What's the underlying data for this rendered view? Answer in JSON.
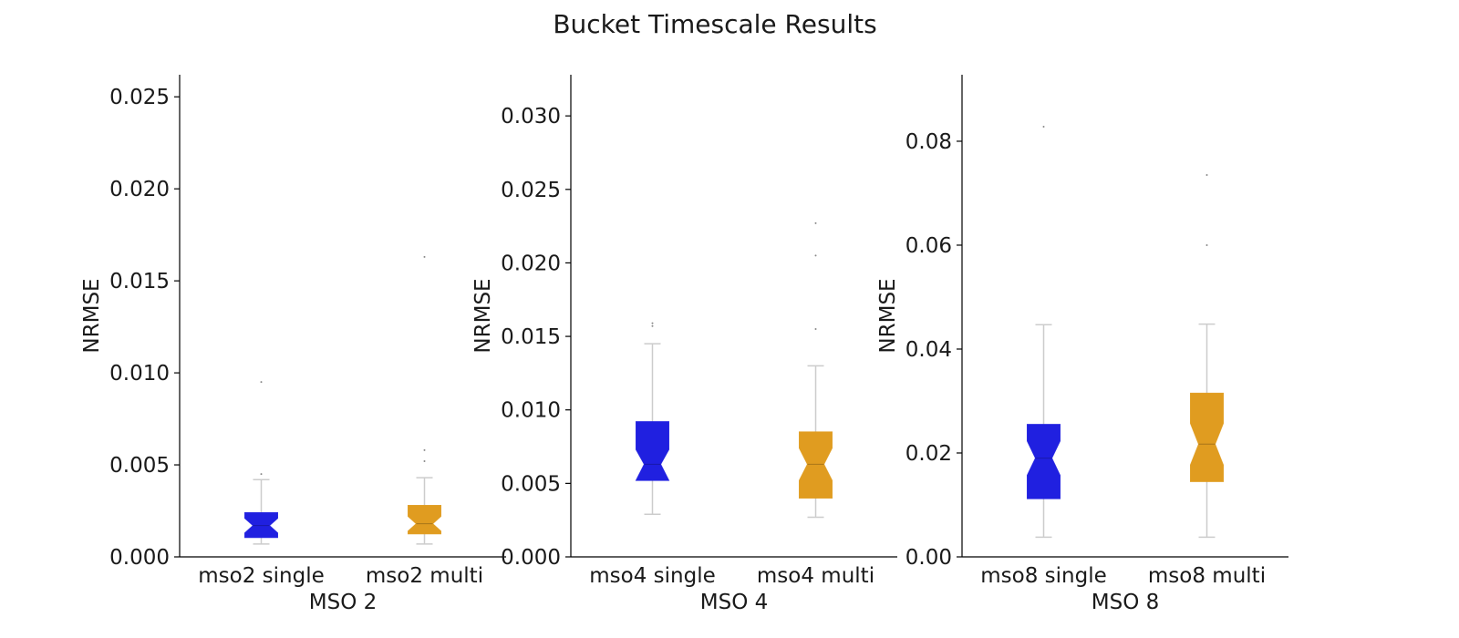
{
  "title": "Bucket Timescale Results",
  "colors": {
    "single": "#2020e0",
    "multi": "#e09c20",
    "axis": "#000000",
    "whisker": "#cccccc"
  },
  "chart_data": [
    {
      "type": "box",
      "panel": "MSO 2",
      "xlabel": "MSO 2",
      "ylabel": "NRMSE",
      "ylim": [
        0,
        0.0262
      ],
      "yticks": [
        0.0,
        0.005,
        0.01,
        0.015,
        0.02,
        0.025
      ],
      "ytick_labels": [
        "0.000",
        "0.005",
        "0.010",
        "0.015",
        "0.020",
        "0.025"
      ],
      "categories": [
        "mso2 single",
        "mso2 multi"
      ],
      "boxes": [
        {
          "name": "mso2 single",
          "color": "single",
          "whislo": 0.0007,
          "q1": 0.00105,
          "med": 0.0017,
          "q3": 0.0024,
          "whishi": 0.0042,
          "notch_lo": 0.0013,
          "notch_hi": 0.0021,
          "fliers": [
            0.0045,
            0.0095
          ]
        },
        {
          "name": "mso2 multi",
          "color": "multi",
          "whislo": 0.0007,
          "q1": 0.00125,
          "med": 0.0018,
          "q3": 0.0028,
          "whishi": 0.0043,
          "notch_lo": 0.0014,
          "notch_hi": 0.0022,
          "fliers": [
            0.0052,
            0.0058,
            0.0163
          ]
        }
      ]
    },
    {
      "type": "box",
      "panel": "MSO 4",
      "xlabel": "MSO 4",
      "ylabel": "NRMSE",
      "ylim": [
        0,
        0.0328
      ],
      "yticks": [
        0.0,
        0.005,
        0.01,
        0.015,
        0.02,
        0.025,
        0.03
      ],
      "ytick_labels": [
        "0.000",
        "0.005",
        "0.010",
        "0.015",
        "0.020",
        "0.025",
        "0.030"
      ],
      "categories": [
        "mso4 single",
        "mso4 multi"
      ],
      "boxes": [
        {
          "name": "mso4 single",
          "color": "single",
          "whislo": 0.0029,
          "q1": 0.0052,
          "med": 0.0063,
          "q3": 0.0092,
          "whishi": 0.0145,
          "notch_lo": 0.0052,
          "notch_hi": 0.0073,
          "fliers": [
            0.0157,
            0.0159
          ]
        },
        {
          "name": "mso4 multi",
          "color": "multi",
          "whislo": 0.0027,
          "q1": 0.004,
          "med": 0.0063,
          "q3": 0.0085,
          "whishi": 0.013,
          "notch_lo": 0.0052,
          "notch_hi": 0.0074,
          "fliers": [
            0.0155,
            0.0205,
            0.0227
          ]
        }
      ]
    },
    {
      "type": "box",
      "panel": "MSO 8",
      "xlabel": "MSO 8",
      "ylabel": "NRMSE",
      "ylim": [
        0,
        0.0928
      ],
      "yticks": [
        0.0,
        0.02,
        0.04,
        0.06,
        0.08
      ],
      "ytick_labels": [
        "0.00",
        "0.02",
        "0.04",
        "0.06",
        "0.08"
      ],
      "categories": [
        "mso8 single",
        "mso8 multi"
      ],
      "boxes": [
        {
          "name": "mso8 single",
          "color": "single",
          "whislo": 0.0038,
          "q1": 0.0112,
          "med": 0.019,
          "q3": 0.0255,
          "whishi": 0.0447,
          "notch_lo": 0.0157,
          "notch_hi": 0.0223,
          "fliers": [
            0.0828
          ]
        },
        {
          "name": "mso8 multi",
          "color": "multi",
          "whislo": 0.0038,
          "q1": 0.0145,
          "med": 0.0217,
          "q3": 0.0315,
          "whishi": 0.0448,
          "notch_lo": 0.0177,
          "notch_hi": 0.0257,
          "fliers": [
            0.06,
            0.0735
          ]
        }
      ]
    }
  ]
}
